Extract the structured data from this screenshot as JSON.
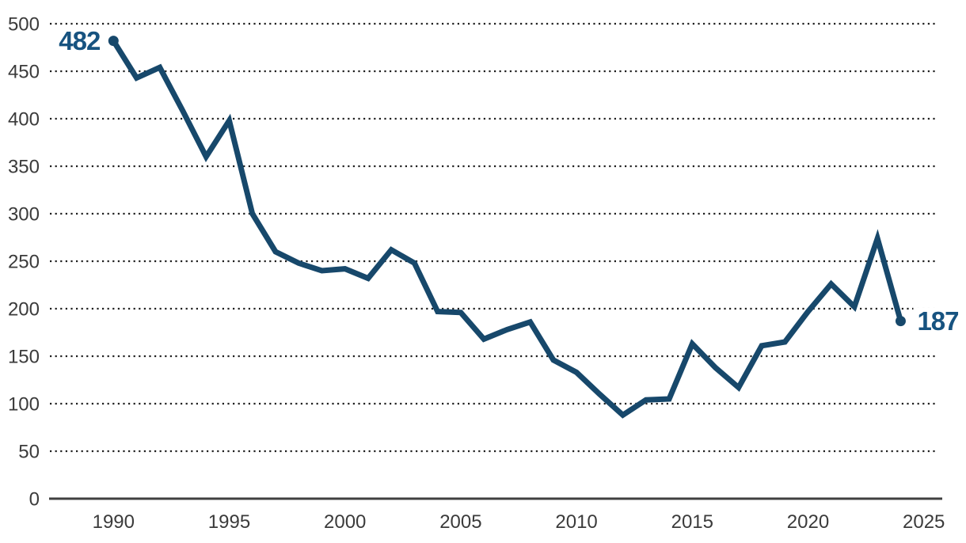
{
  "chart": {
    "title": "",
    "x_axis_label": "",
    "y_axis_label": "",
    "x_tick_labels": [
      "1990",
      "1995",
      "2000",
      "2005",
      "2010",
      "2015",
      "2020",
      "2025"
    ],
    "y_tick_labels": [
      "0",
      "50",
      "100",
      "150",
      "200",
      "250",
      "300",
      "350",
      "400",
      "450",
      "500"
    ],
    "first_point_label": "482",
    "last_point_label": "187"
  },
  "chart_data": {
    "type": "line",
    "x": [
      1990,
      1991,
      1992,
      1993,
      1994,
      1995,
      1996,
      1997,
      1998,
      1999,
      2000,
      2001,
      2002,
      2003,
      2004,
      2005,
      2006,
      2007,
      2008,
      2009,
      2010,
      2011,
      2012,
      2013,
      2014,
      2015,
      2016,
      2017,
      2018,
      2019,
      2020,
      2021,
      2022,
      2023,
      2024
    ],
    "values": [
      482,
      443,
      454,
      408,
      360,
      398,
      300,
      260,
      248,
      240,
      242,
      232,
      262,
      248,
      197,
      196,
      168,
      178,
      186,
      146,
      133,
      110,
      88,
      104,
      105,
      163,
      138,
      117,
      161,
      165,
      197,
      226,
      202,
      274,
      187
    ],
    "title": "",
    "xlabel": "",
    "ylabel": "",
    "xlim": [
      1990,
      2025
    ],
    "ylim": [
      0,
      500
    ],
    "x_tick_values": [
      1990,
      1995,
      2000,
      2005,
      2010,
      2015,
      2020,
      2025
    ],
    "y_tick_values": [
      0,
      50,
      100,
      150,
      200,
      250,
      300,
      350,
      400,
      450,
      500
    ],
    "grid": "horizontal-dotted",
    "legend_position": "none",
    "markers": "endpoints-only",
    "annotations": [
      {
        "x": 1990,
        "value": 482,
        "label": "482",
        "position": "left-of-point"
      },
      {
        "x": 2024,
        "value": 187,
        "label": "187",
        "position": "right-of-point"
      }
    ],
    "colors": {
      "line": "#17486B",
      "endpoint_dot": "#17486B",
      "value_label": "#175380",
      "axis_text": "#3B3B3B",
      "gridline": "#1F1F1F",
      "baseline": "#3F3F3F",
      "background": "#FFFFFF"
    }
  }
}
